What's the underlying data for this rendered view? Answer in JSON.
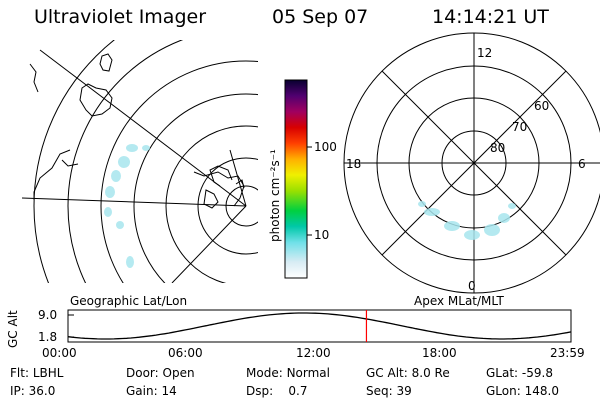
{
  "header": {
    "instrument": "Ultraviolet Imager",
    "date": "05 Sep 07",
    "time": "14:14:21 UT"
  },
  "colorbar": {
    "label": "photon cm⁻²s⁻¹",
    "ticks": [
      "100",
      "10"
    ]
  },
  "panels": {
    "left_caption": "Geographic Lat/Lon",
    "right_caption": "Apex  MLat/MLT"
  },
  "polar": {
    "mlt_labels": {
      "top": "12",
      "left": "18",
      "right": "6",
      "bottom": "0"
    },
    "lat_labels": [
      "60",
      "70",
      "80"
    ]
  },
  "altitude_plot": {
    "ylabel": "GC Alt",
    "y_ticks": [
      "9.0",
      "1.8"
    ],
    "x_ticks": [
      "00:00",
      "06:00",
      "12:00",
      "18:00",
      "23:59"
    ],
    "ylim": [
      1.8,
      9.0
    ],
    "current_hour": 14.24,
    "marker_color": "#ff0000"
  },
  "info": {
    "row1": [
      {
        "key": "Flt:",
        "val": "LBHL"
      },
      {
        "key": "Door:",
        "val": "Open"
      },
      {
        "key": "Mode:",
        "val": "Normal"
      },
      {
        "key": "GC Alt:",
        "val": "8.0 Re"
      },
      {
        "key": "GLat:",
        "val": "-59.8"
      }
    ],
    "row2": [
      {
        "key": "IP:",
        "val": "36.0"
      },
      {
        "key": "Gain:",
        "val": "14"
      },
      {
        "key": "Dsp:",
        "val": "0.7"
      },
      {
        "key": "Seq:",
        "val": "39"
      },
      {
        "key": "GLon:",
        "val": "148.0"
      }
    ]
  }
}
